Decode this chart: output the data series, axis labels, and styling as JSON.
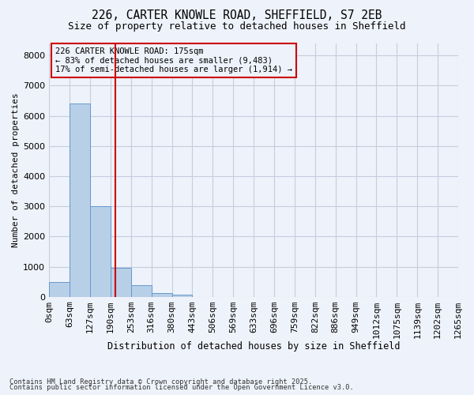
{
  "title_line1": "226, CARTER KNOWLE ROAD, SHEFFIELD, S7 2EB",
  "title_line2": "Size of property relative to detached houses in Sheffield",
  "xlabel": "Distribution of detached houses by size in Sheffield",
  "ylabel": "Number of detached properties",
  "background_color": "#eef2fa",
  "bar_color": "#b8cfe8",
  "bar_edge_color": "#6699cc",
  "grid_color": "#c5cedf",
  "vline_color": "#cc0000",
  "vline_position": 2.75,
  "tick_labels": [
    "0sqm",
    "63sqm",
    "127sqm",
    "190sqm",
    "253sqm",
    "316sqm",
    "380sqm",
    "443sqm",
    "506sqm",
    "569sqm",
    "633sqm",
    "696sqm",
    "759sqm",
    "822sqm",
    "886sqm",
    "949sqm",
    "1012sqm",
    "1075sqm",
    "1139sqm",
    "1202sqm",
    "1265sqm"
  ],
  "bar_values": [
    490,
    6400,
    3000,
    950,
    380,
    130,
    60,
    0,
    0,
    0,
    0,
    0,
    0,
    0,
    0,
    0,
    0,
    0,
    0,
    0
  ],
  "ylim": [
    0,
    8400
  ],
  "yticks": [
    0,
    1000,
    2000,
    3000,
    4000,
    5000,
    6000,
    7000,
    8000
  ],
  "annotation_title": "226 CARTER KNOWLE ROAD: 175sqm",
  "annotation_line1": "← 83% of detached houses are smaller (9,483)",
  "annotation_line2": "17% of semi-detached houses are larger (1,914) →",
  "annotation_box_color": "#cc0000",
  "footnote1": "Contains HM Land Registry data © Crown copyright and database right 2025.",
  "footnote2": "Contains public sector information licensed under the Open Government Licence v3.0."
}
